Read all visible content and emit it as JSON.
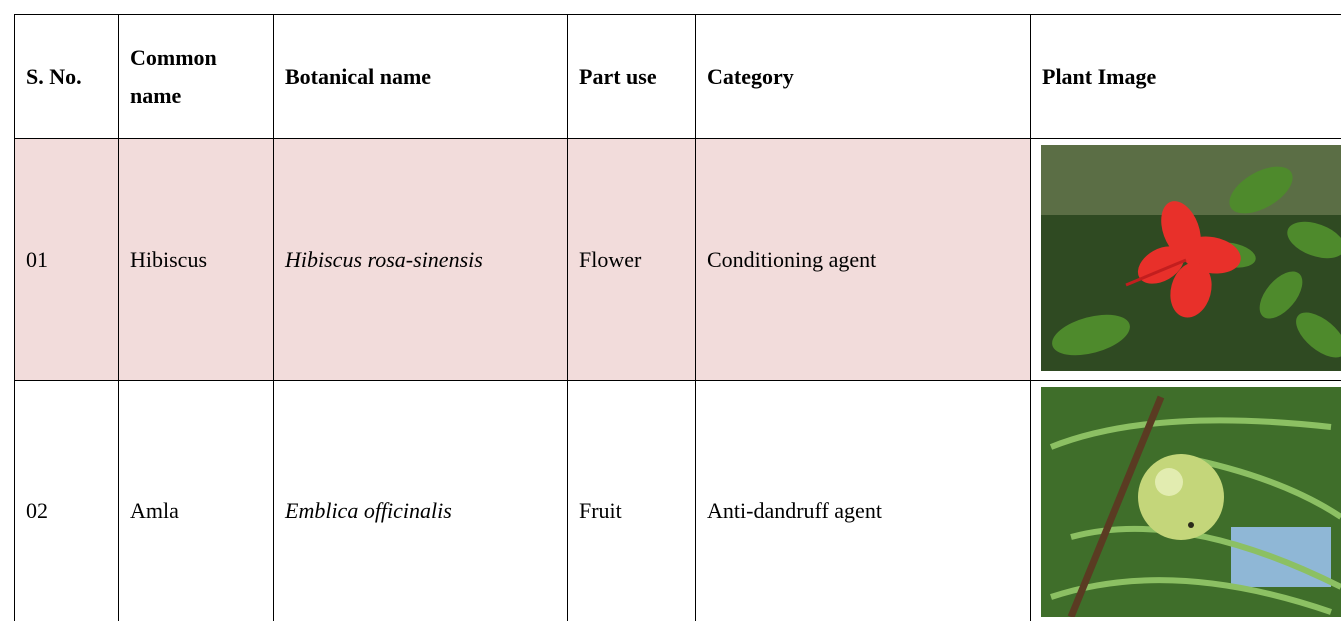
{
  "table": {
    "header": [
      "S. No.",
      "Common name",
      "Botanical name",
      "Part use",
      "Category",
      "Plant Image"
    ],
    "rows": [
      [
        "01",
        "Hibiscus",
        "Hibiscus rosa-sinensis",
        "Flower",
        "Conditioning agent"
      ],
      [
        "02",
        "Amla",
        "Emblica officinalis",
        "Fruit",
        "Anti-dandruff agent"
      ]
    ]
  }
}
